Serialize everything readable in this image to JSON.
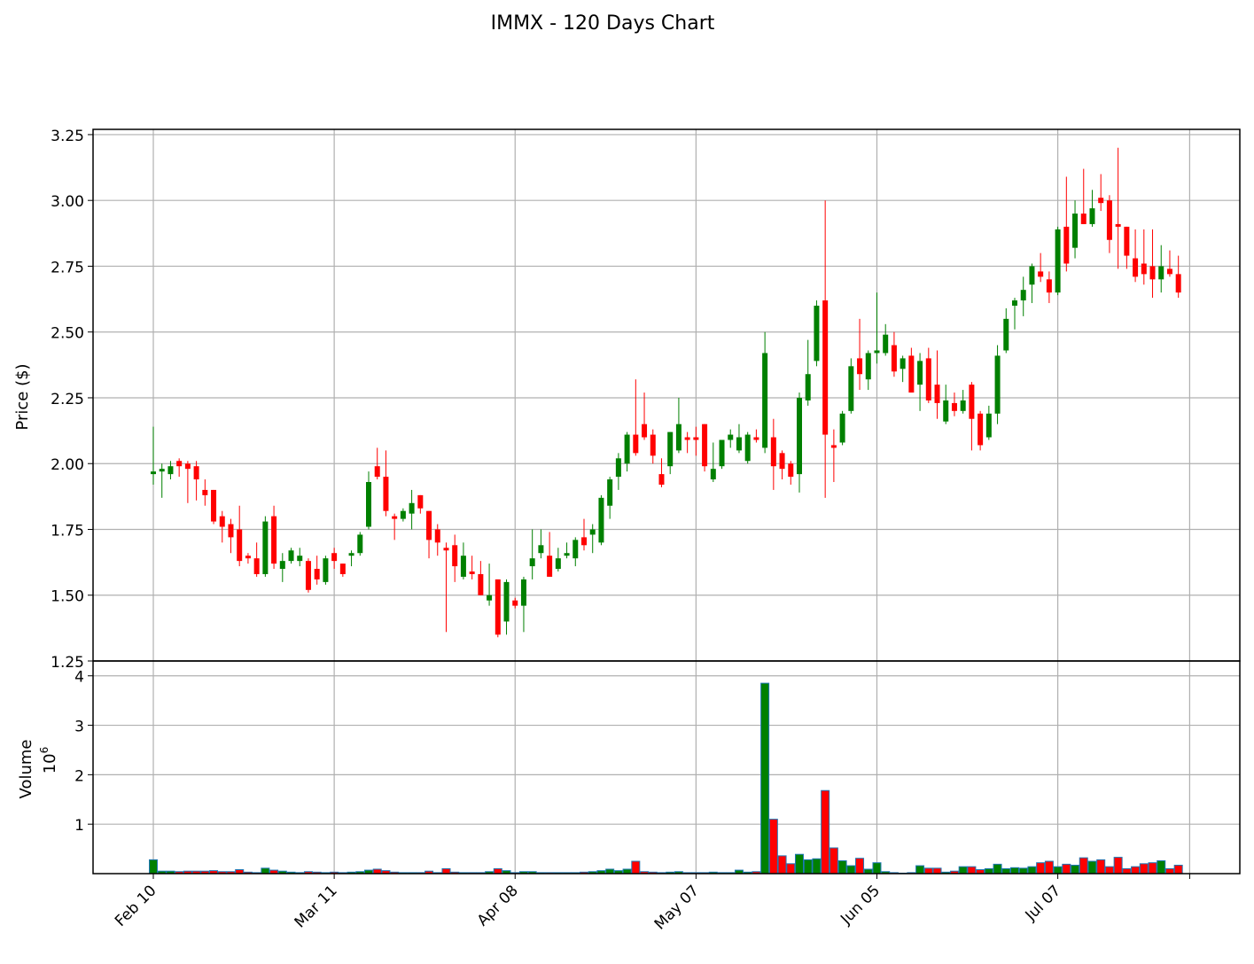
{
  "chart_data": {
    "type": "candlestick",
    "title": "IMMX - 120 Days Chart",
    "ylabel": "Price ($)",
    "volume_label": "Volume",
    "volume_exponent_base": "10",
    "volume_exponent": "6",
    "price_ylim": [
      1.25,
      3.27
    ],
    "price_yticks": [
      "1.25",
      "1.50",
      "1.75",
      "2.00",
      "2.25",
      "2.50",
      "2.75",
      "3.00",
      "3.25"
    ],
    "volume_ylim": [
      0,
      4.3
    ],
    "volume_yticks": [
      "1",
      "2",
      "3",
      "4"
    ],
    "x_tick_labels": [
      "Feb 10",
      "Mar 11",
      "Apr 08",
      "May 07",
      "Jun 05",
      "Jul 07"
    ],
    "x_tick_index": [
      0,
      21,
      42,
      63,
      84,
      105
    ],
    "grid": true,
    "colors": {
      "up": "#008000",
      "down": "#ff0000",
      "edge": "#1f77b4"
    },
    "candles": [
      [
        1.96,
        2.14,
        1.92,
        1.97,
        0.28
      ],
      [
        1.97,
        2.0,
        1.87,
        1.98,
        0.05
      ],
      [
        1.96,
        2.01,
        1.94,
        1.99,
        0.05
      ],
      [
        2.01,
        2.02,
        1.95,
        1.99,
        0.04
      ],
      [
        2.0,
        2.01,
        1.85,
        1.98,
        0.05
      ],
      [
        1.99,
        2.01,
        1.86,
        1.94,
        0.05
      ],
      [
        1.9,
        1.94,
        1.84,
        1.88,
        0.05
      ],
      [
        1.9,
        1.9,
        1.77,
        1.78,
        0.06
      ],
      [
        1.8,
        1.82,
        1.7,
        1.76,
        0.04
      ],
      [
        1.77,
        1.79,
        1.66,
        1.72,
        0.04
      ],
      [
        1.75,
        1.84,
        1.61,
        1.63,
        0.08
      ],
      [
        1.65,
        1.66,
        1.62,
        1.64,
        0.03
      ],
      [
        1.64,
        1.7,
        1.57,
        1.58,
        0.02
      ],
      [
        1.58,
        1.8,
        1.57,
        1.78,
        0.11
      ],
      [
        1.8,
        1.84,
        1.6,
        1.62,
        0.07
      ],
      [
        1.6,
        1.66,
        1.55,
        1.63,
        0.05
      ],
      [
        1.63,
        1.68,
        1.62,
        1.67,
        0.03
      ],
      [
        1.63,
        1.68,
        1.61,
        1.65,
        0.02
      ],
      [
        1.63,
        1.64,
        1.51,
        1.52,
        0.04
      ],
      [
        1.6,
        1.65,
        1.54,
        1.56,
        0.03
      ],
      [
        1.55,
        1.65,
        1.54,
        1.64,
        0.02
      ],
      [
        1.66,
        1.68,
        1.6,
        1.63,
        0.03
      ],
      [
        1.62,
        1.62,
        1.57,
        1.58,
        0.02
      ],
      [
        1.65,
        1.67,
        1.61,
        1.66,
        0.03
      ],
      [
        1.66,
        1.74,
        1.65,
        1.73,
        0.04
      ],
      [
        1.76,
        1.97,
        1.75,
        1.93,
        0.07
      ],
      [
        1.99,
        2.06,
        1.94,
        1.95,
        0.09
      ],
      [
        1.95,
        2.05,
        1.8,
        1.82,
        0.06
      ],
      [
        1.8,
        1.81,
        1.71,
        1.79,
        0.03
      ],
      [
        1.79,
        1.83,
        1.78,
        1.82,
        0.02
      ],
      [
        1.81,
        1.9,
        1.75,
        1.85,
        0.02
      ],
      [
        1.88,
        1.88,
        1.81,
        1.83,
        0.02
      ],
      [
        1.82,
        1.82,
        1.64,
        1.71,
        0.05
      ],
      [
        1.75,
        1.77,
        1.65,
        1.7,
        0.02
      ],
      [
        1.68,
        1.7,
        1.36,
        1.67,
        0.1
      ],
      [
        1.69,
        1.73,
        1.55,
        1.61,
        0.03
      ],
      [
        1.57,
        1.7,
        1.56,
        1.65,
        0.02
      ],
      [
        1.59,
        1.65,
        1.56,
        1.58,
        0.02
      ],
      [
        1.58,
        1.63,
        1.5,
        1.5,
        0.02
      ],
      [
        1.48,
        1.62,
        1.46,
        1.5,
        0.04
      ],
      [
        1.56,
        1.56,
        1.34,
        1.35,
        0.1
      ],
      [
        1.4,
        1.56,
        1.35,
        1.55,
        0.06
      ],
      [
        1.48,
        1.49,
        1.45,
        1.46,
        0.02
      ],
      [
        1.46,
        1.57,
        1.36,
        1.56,
        0.04
      ],
      [
        1.61,
        1.75,
        1.56,
        1.64,
        0.04
      ],
      [
        1.66,
        1.75,
        1.64,
        1.69,
        0.02
      ],
      [
        1.65,
        1.74,
        1.57,
        1.57,
        0.02
      ],
      [
        1.6,
        1.68,
        1.59,
        1.64,
        0.02
      ],
      [
        1.65,
        1.7,
        1.64,
        1.66,
        0.02
      ],
      [
        1.64,
        1.72,
        1.61,
        1.71,
        0.02
      ],
      [
        1.72,
        1.79,
        1.67,
        1.69,
        0.03
      ],
      [
        1.73,
        1.77,
        1.66,
        1.75,
        0.04
      ],
      [
        1.7,
        1.88,
        1.69,
        1.87,
        0.06
      ],
      [
        1.84,
        1.95,
        1.79,
        1.94,
        0.09
      ],
      [
        1.95,
        2.04,
        1.9,
        2.02,
        0.06
      ],
      [
        2.0,
        2.12,
        1.97,
        2.11,
        0.09
      ],
      [
        2.11,
        2.32,
        2.03,
        2.04,
        0.25
      ],
      [
        2.15,
        2.27,
        2.09,
        2.1,
        0.04
      ],
      [
        2.11,
        2.13,
        2.0,
        2.03,
        0.03
      ],
      [
        1.96,
        2.02,
        1.91,
        1.92,
        0.02
      ],
      [
        1.99,
        2.12,
        1.96,
        2.12,
        0.03
      ],
      [
        2.05,
        2.25,
        2.04,
        2.15,
        0.04
      ],
      [
        2.1,
        2.12,
        2.04,
        2.09,
        0.02
      ],
      [
        2.1,
        2.14,
        2.03,
        2.09,
        0.02
      ],
      [
        2.15,
        2.15,
        1.97,
        1.99,
        0.02
      ],
      [
        1.94,
        2.08,
        1.93,
        1.98,
        0.03
      ],
      [
        1.99,
        2.09,
        1.98,
        2.09,
        0.02
      ],
      [
        2.09,
        2.13,
        2.06,
        2.11,
        0.02
      ],
      [
        2.05,
        2.15,
        2.04,
        2.1,
        0.07
      ],
      [
        2.01,
        2.12,
        2.0,
        2.11,
        0.03
      ],
      [
        2.1,
        2.13,
        2.08,
        2.09,
        0.04
      ],
      [
        2.06,
        2.5,
        2.04,
        2.42,
        3.85
      ],
      [
        2.1,
        2.17,
        1.9,
        1.99,
        1.1
      ],
      [
        2.04,
        2.05,
        1.94,
        1.98,
        0.36
      ],
      [
        2.0,
        2.01,
        1.92,
        1.95,
        0.2
      ],
      [
        1.96,
        2.27,
        1.89,
        2.25,
        0.39
      ],
      [
        2.24,
        2.47,
        2.22,
        2.34,
        0.28
      ],
      [
        2.39,
        2.62,
        2.37,
        2.6,
        0.3
      ],
      [
        2.62,
        3.0,
        1.87,
        2.11,
        1.68
      ],
      [
        2.07,
        2.13,
        1.93,
        2.06,
        0.52
      ],
      [
        2.08,
        2.2,
        2.07,
        2.19,
        0.26
      ],
      [
        2.2,
        2.4,
        2.19,
        2.37,
        0.16
      ],
      [
        2.4,
        2.55,
        2.28,
        2.34,
        0.31
      ],
      [
        2.32,
        2.43,
        2.28,
        2.42,
        0.09
      ],
      [
        2.42,
        2.65,
        2.38,
        2.43,
        0.22
      ],
      [
        2.42,
        2.53,
        2.41,
        2.49,
        0.04
      ],
      [
        2.45,
        2.5,
        2.33,
        2.35,
        0.02
      ],
      [
        2.36,
        2.41,
        2.31,
        2.4,
        0.01
      ],
      [
        2.41,
        2.44,
        2.27,
        2.27,
        0.02
      ],
      [
        2.3,
        2.42,
        2.2,
        2.39,
        0.16
      ],
      [
        2.4,
        2.44,
        2.23,
        2.24,
        0.11
      ],
      [
        2.3,
        2.43,
        2.17,
        2.23,
        0.11
      ],
      [
        2.16,
        2.3,
        2.15,
        2.24,
        0.03
      ],
      [
        2.23,
        2.27,
        2.18,
        2.2,
        0.05
      ],
      [
        2.2,
        2.28,
        2.19,
        2.24,
        0.14
      ],
      [
        2.3,
        2.31,
        2.05,
        2.17,
        0.14
      ],
      [
        2.19,
        2.2,
        2.05,
        2.07,
        0.08
      ],
      [
        2.1,
        2.22,
        2.09,
        2.19,
        0.1
      ],
      [
        2.19,
        2.45,
        2.15,
        2.41,
        0.19
      ],
      [
        2.43,
        2.59,
        2.42,
        2.55,
        0.1
      ],
      [
        2.6,
        2.63,
        2.51,
        2.62,
        0.12
      ],
      [
        2.62,
        2.71,
        2.56,
        2.66,
        0.11
      ],
      [
        2.68,
        2.76,
        2.61,
        2.75,
        0.14
      ],
      [
        2.73,
        2.8,
        2.69,
        2.71,
        0.22
      ],
      [
        2.7,
        2.73,
        2.61,
        2.65,
        0.25
      ],
      [
        2.65,
        2.9,
        2.64,
        2.89,
        0.14
      ],
      [
        2.9,
        3.09,
        2.73,
        2.76,
        0.19
      ],
      [
        2.82,
        3.0,
        2.78,
        2.95,
        0.17
      ],
      [
        2.95,
        3.12,
        2.91,
        2.91,
        0.32
      ],
      [
        2.91,
        3.04,
        2.9,
        2.97,
        0.25
      ],
      [
        3.01,
        3.1,
        2.96,
        2.99,
        0.28
      ],
      [
        3.0,
        3.02,
        2.8,
        2.85,
        0.14
      ],
      [
        2.91,
        3.2,
        2.74,
        2.9,
        0.33
      ],
      [
        2.9,
        2.9,
        2.74,
        2.79,
        0.1
      ],
      [
        2.78,
        2.89,
        2.69,
        2.71,
        0.14
      ],
      [
        2.76,
        2.89,
        2.68,
        2.72,
        0.2
      ],
      [
        2.75,
        2.89,
        2.63,
        2.7,
        0.22
      ],
      [
        2.7,
        2.83,
        2.65,
        2.75,
        0.26
      ],
      [
        2.74,
        2.81,
        2.71,
        2.72,
        0.1
      ],
      [
        2.72,
        2.79,
        2.63,
        2.65,
        0.17
      ]
    ]
  }
}
